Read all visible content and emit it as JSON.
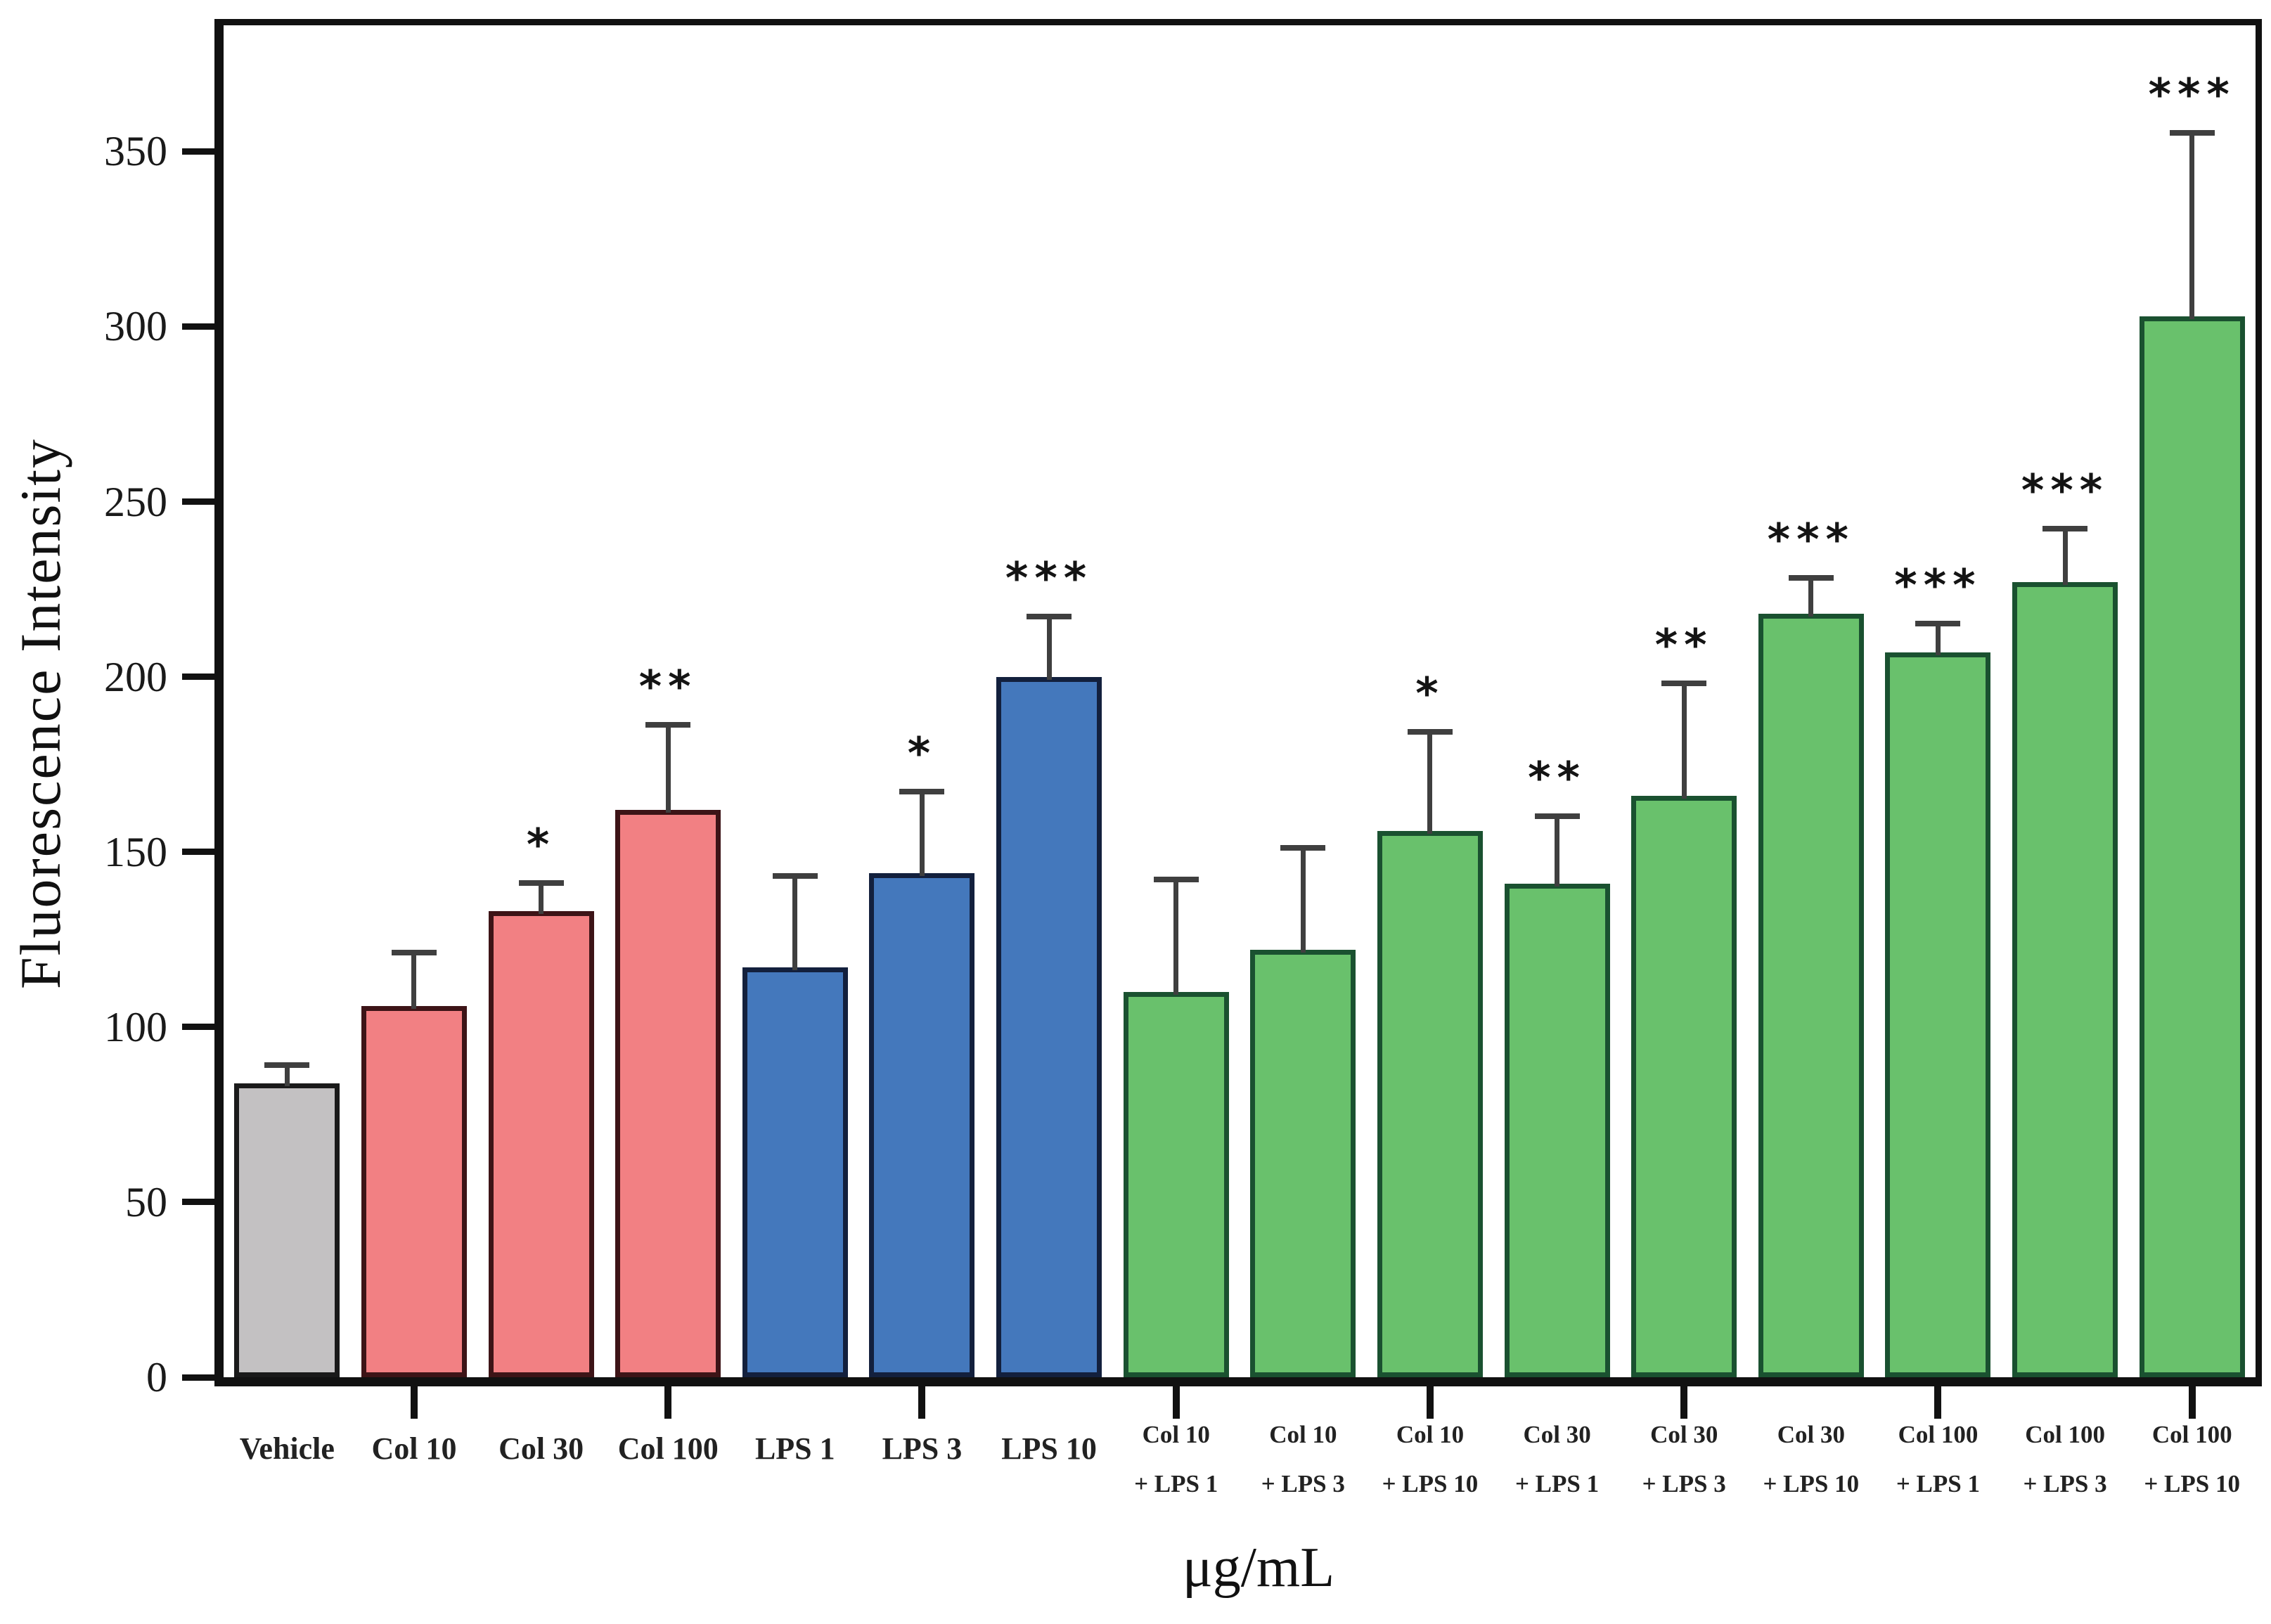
{
  "figure": {
    "background": "#ffffff",
    "axis_color": "#111111",
    "error_bar_color": "#3f3f3f",
    "star_color": "#141414"
  },
  "chart_data": {
    "type": "bar",
    "title": "",
    "ylabel": "Fluorescence Intensity",
    "xlabel": "μg/mL",
    "ylim": [
      0,
      386
    ],
    "yticks": [
      0,
      50,
      100,
      150,
      200,
      250,
      300,
      350
    ],
    "grid": false,
    "legend": "none",
    "group_colors": {
      "vehicle": {
        "fill": "#C3C1C2",
        "border": "#1A1A1A"
      },
      "collagen": {
        "fill": "#F28083",
        "border": "#3D1417"
      },
      "lps": {
        "fill": "#4478BC",
        "border": "#13203D"
      },
      "combo": {
        "fill": "#69C16C",
        "border": "#1A5130"
      }
    },
    "bars": [
      {
        "label": "Vehicle",
        "label_line2": "",
        "value": 84,
        "error_plus": 6,
        "significance": "",
        "group": "vehicle"
      },
      {
        "label": "Col 10",
        "label_line2": "",
        "value": 106,
        "error_plus": 16,
        "significance": "",
        "group": "collagen"
      },
      {
        "label": "Col 30",
        "label_line2": "",
        "value": 133,
        "error_plus": 9,
        "significance": "*",
        "group": "collagen"
      },
      {
        "label": "Col 100",
        "label_line2": "",
        "value": 162,
        "error_plus": 25,
        "significance": "**",
        "group": "collagen"
      },
      {
        "label": "LPS 1",
        "label_line2": "",
        "value": 117,
        "error_plus": 27,
        "significance": "",
        "group": "lps"
      },
      {
        "label": "LPS 3",
        "label_line2": "",
        "value": 144,
        "error_plus": 24,
        "significance": "*",
        "group": "lps"
      },
      {
        "label": "LPS 10",
        "label_line2": "",
        "value": 200,
        "error_plus": 18,
        "significance": "***",
        "group": "lps"
      },
      {
        "label": "Col 10",
        "label_line2": "+ LPS 1",
        "value": 110,
        "error_plus": 33,
        "significance": "",
        "group": "combo"
      },
      {
        "label": "Col 10",
        "label_line2": "+ LPS 3",
        "value": 122,
        "error_plus": 30,
        "significance": "",
        "group": "combo"
      },
      {
        "label": "Col 10",
        "label_line2": "+ LPS 10",
        "value": 156,
        "error_plus": 29,
        "significance": "*",
        "group": "combo"
      },
      {
        "label": "Col 30",
        "label_line2": "+ LPS 1",
        "value": 141,
        "error_plus": 20,
        "significance": "**",
        "group": "combo"
      },
      {
        "label": "Col 30",
        "label_line2": "+ LPS 3",
        "value": 166,
        "error_plus": 33,
        "significance": "**",
        "group": "combo"
      },
      {
        "label": "Col 30",
        "label_line2": "+ LPS 10",
        "value": 218,
        "error_plus": 11,
        "significance": "***",
        "group": "combo"
      },
      {
        "label": "Col 100",
        "label_line2": "+ LPS 1",
        "value": 207,
        "error_plus": 9,
        "significance": "***",
        "group": "combo"
      },
      {
        "label": "Col 100",
        "label_line2": "+ LPS 3",
        "value": 227,
        "error_plus": 16,
        "significance": "***",
        "group": "combo"
      },
      {
        "label": "Col 100",
        "label_line2": "+ LPS 10",
        "value": 303,
        "error_plus": 53,
        "significance": "***",
        "group": "combo"
      }
    ]
  }
}
